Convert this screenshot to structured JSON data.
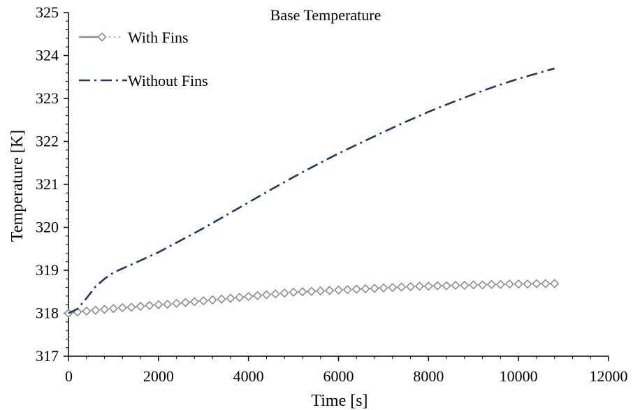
{
  "chart_data": {
    "type": "line",
    "title": "Base Temperature",
    "xlabel": "Time [s]",
    "ylabel": "Temperature [K]",
    "xlim": [
      0,
      12000
    ],
    "ylim": [
      317,
      325
    ],
    "xticks": [
      0,
      2000,
      4000,
      6000,
      8000,
      10000,
      12000
    ],
    "yticks": [
      317,
      318,
      319,
      320,
      321,
      322,
      323,
      324,
      325
    ],
    "xtick_labels": [
      "0",
      "2000",
      "4000",
      "6000",
      "8000",
      "10000",
      "12000"
    ],
    "ytick_labels": [
      "317",
      "318",
      "319",
      "320",
      "321",
      "322",
      "323",
      "324",
      "325"
    ],
    "grid": false,
    "legend_position": "top-left",
    "series": [
      {
        "name": "With Fins",
        "color": "#8c8c8c",
        "style": "dotted-diamond",
        "x": [
          0,
          200,
          400,
          600,
          800,
          1000,
          1200,
          1400,
          1600,
          1800,
          2000,
          2200,
          2400,
          2600,
          2800,
          3000,
          3200,
          3400,
          3600,
          3800,
          4000,
          4200,
          4400,
          4600,
          4800,
          5000,
          5200,
          5400,
          5600,
          5800,
          6000,
          6200,
          6400,
          6600,
          6800,
          7000,
          7200,
          7400,
          7600,
          7800,
          8000,
          8200,
          8400,
          8600,
          8800,
          9000,
          9200,
          9400,
          9600,
          9800,
          10000,
          10200,
          10400,
          10600,
          10800
        ],
        "y": [
          318.0,
          318.03,
          318.05,
          318.07,
          318.09,
          318.11,
          318.13,
          318.14,
          318.16,
          318.18,
          318.2,
          318.21,
          318.23,
          318.25,
          318.27,
          318.29,
          318.31,
          318.33,
          318.35,
          318.37,
          318.39,
          318.41,
          318.43,
          318.45,
          318.47,
          318.49,
          318.5,
          318.51,
          318.52,
          318.53,
          318.54,
          318.55,
          318.56,
          318.57,
          318.58,
          318.59,
          318.6,
          318.61,
          318.62,
          318.63,
          318.63,
          318.64,
          318.64,
          318.65,
          318.65,
          318.66,
          318.66,
          318.67,
          318.67,
          318.68,
          318.68,
          318.68,
          318.69,
          318.69,
          318.69
        ]
      },
      {
        "name": "Without Fins",
        "color": "#1f3864",
        "style": "dash-dot",
        "x": [
          0,
          200,
          400,
          600,
          800,
          1000,
          1500,
          2000,
          2500,
          3000,
          3500,
          4000,
          4500,
          5000,
          5500,
          6000,
          6500,
          7000,
          7500,
          8000,
          8500,
          9000,
          9500,
          10000,
          10500,
          10800
        ],
        "y": [
          318.0,
          318.1,
          318.35,
          318.62,
          318.8,
          318.95,
          319.18,
          319.42,
          319.7,
          319.98,
          320.28,
          320.58,
          320.88,
          321.17,
          321.45,
          321.72,
          321.97,
          322.22,
          322.46,
          322.69,
          322.9,
          323.1,
          323.29,
          323.46,
          323.61,
          323.7
        ]
      }
    ]
  }
}
